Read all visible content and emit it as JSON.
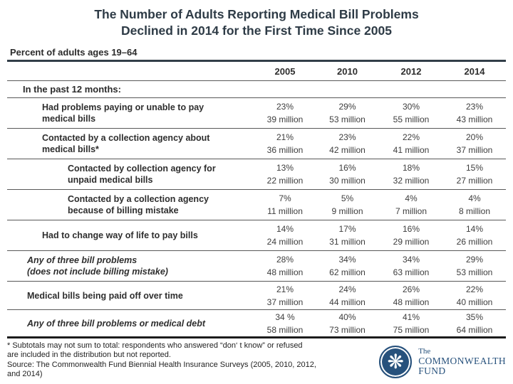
{
  "slide": {
    "title_line1": "The Number of Adults Reporting Medical Bill Problems",
    "title_line2": "Declined in 2014 for the First Time Since 2005",
    "subtitle": "Percent of adults ages 19–64"
  },
  "table": {
    "columns": [
      "2005",
      "2010",
      "2012",
      "2014"
    ],
    "section_header": "In the past 12 months:",
    "rows": [
      {
        "label1": "Had problems paying or unable to pay",
        "label2": "medical bills",
        "cells": [
          {
            "pct": "23%",
            "num": "39 million"
          },
          {
            "pct": "29%",
            "num": "53 million"
          },
          {
            "pct": "30%",
            "num": "55 million"
          },
          {
            "pct": "23%",
            "num": "43 million"
          }
        ]
      },
      {
        "label1": "Contacted by a collection agency about",
        "label2": "medical bills*",
        "cells": [
          {
            "pct": "21%",
            "num": "36 million"
          },
          {
            "pct": "23%",
            "num": "42 million"
          },
          {
            "pct": "22%",
            "num": "41 million"
          },
          {
            "pct": "20%",
            "num": "37 million"
          }
        ]
      },
      {
        "label1": "Contacted by collection agency for",
        "label2": "unpaid medical bills",
        "cells": [
          {
            "pct": "13%",
            "num": "22 million"
          },
          {
            "pct": "16%",
            "num": "30 million"
          },
          {
            "pct": "18%",
            "num": "32 million"
          },
          {
            "pct": "15%",
            "num": "27 million"
          }
        ]
      },
      {
        "label1": "Contacted by a collection agency",
        "label2": "because of billing mistake",
        "cells": [
          {
            "pct": "7%",
            "num": "11 million"
          },
          {
            "pct": "5%",
            "num": "9 million"
          },
          {
            "pct": "4%",
            "num": "7 million"
          },
          {
            "pct": "4%",
            "num": "8 million"
          }
        ]
      },
      {
        "label1": "Had to change way of life to pay bills",
        "label2": "",
        "cells": [
          {
            "pct": "14%",
            "num": "24 million"
          },
          {
            "pct": "17%",
            "num": "31 million"
          },
          {
            "pct": "16%",
            "num": "29 million"
          },
          {
            "pct": "14%",
            "num": "26 million"
          }
        ]
      },
      {
        "label1": "Any of three bill problems",
        "label2": "(does not include billing mistake)",
        "cells": [
          {
            "pct": "28%",
            "num": "48 million"
          },
          {
            "pct": "34%",
            "num": "62 million"
          },
          {
            "pct": "34%",
            "num": "63 million"
          },
          {
            "pct": "29%",
            "num": "53 million"
          }
        ]
      },
      {
        "label1": "Medical bills being paid off over time",
        "label2": "",
        "cells": [
          {
            "pct": "21%",
            "num": "37 million"
          },
          {
            "pct": "24%",
            "num": "44 million"
          },
          {
            "pct": "26%",
            "num": "48 million"
          },
          {
            "pct": "22%",
            "num": "40 million"
          }
        ]
      },
      {
        "label1": "Any of three bill problems or medical debt",
        "label2": "",
        "cells": [
          {
            "pct": "34 %",
            "num": "58 million"
          },
          {
            "pct": "40%",
            "num": "73 million"
          },
          {
            "pct": "41%",
            "num": "75 million"
          },
          {
            "pct": "35%",
            "num": "64 million"
          }
        ]
      }
    ]
  },
  "footnote": {
    "note_line1": "* Subtotals may not sum to total: respondents who answered “don‘ t know” or refused",
    "note_line2": "are included in the distribution but not reported.",
    "source_line1": "Source: The Commonwealth Fund Biennial Health Insurance Surveys (2005, 2010, 2012,",
    "source_line2": "and 2014)"
  },
  "logo": {
    "icon": "snowflake-icon",
    "glyph": "❋",
    "the": "The",
    "line1": "COMMONWEALTH",
    "line2": "FUND"
  },
  "colors": {
    "title_text": "#2e3b46",
    "body_text": "#2e2e2e",
    "value_text": "#3d3d3d",
    "rule_dark": "#323e48",
    "rule_thin": "#585858",
    "bottom_rule": "#1c1c1c",
    "logo_navy": "#27517c",
    "background": "#ffffff"
  },
  "chart_data": {
    "type": "table",
    "title": "The Number of Adults Reporting Medical Bill Problems Declined in 2014 for the First Time Since 2005",
    "subtitle": "Percent of adults ages 19–64",
    "categories": [
      "2005",
      "2010",
      "2012",
      "2014"
    ],
    "section": "In the past 12 months:",
    "series": [
      {
        "name": "Had problems paying or unable to pay medical bills",
        "percent": [
          23,
          29,
          30,
          23
        ],
        "millions": [
          39,
          53,
          55,
          43
        ]
      },
      {
        "name": "Contacted by a collection agency about medical bills*",
        "percent": [
          21,
          23,
          22,
          20
        ],
        "millions": [
          36,
          42,
          41,
          37
        ]
      },
      {
        "name": "Contacted by collection agency for unpaid medical bills",
        "percent": [
          13,
          16,
          18,
          15
        ],
        "millions": [
          22,
          30,
          32,
          27
        ]
      },
      {
        "name": "Contacted by a collection agency because of billing mistake",
        "percent": [
          7,
          5,
          4,
          4
        ],
        "millions": [
          11,
          9,
          7,
          8
        ]
      },
      {
        "name": "Had to change way of life to pay bills",
        "percent": [
          14,
          17,
          16,
          14
        ],
        "millions": [
          24,
          31,
          29,
          26
        ]
      },
      {
        "name": "Any of three bill problems (does not include billing mistake)",
        "percent": [
          28,
          34,
          34,
          29
        ],
        "millions": [
          48,
          62,
          63,
          53
        ]
      },
      {
        "name": "Medical bills being paid off over time",
        "percent": [
          21,
          24,
          26,
          22
        ],
        "millions": [
          37,
          44,
          48,
          40
        ]
      },
      {
        "name": "Any of three bill problems or medical debt",
        "percent": [
          34,
          40,
          41,
          35
        ],
        "millions": [
          58,
          73,
          75,
          64
        ]
      }
    ]
  }
}
